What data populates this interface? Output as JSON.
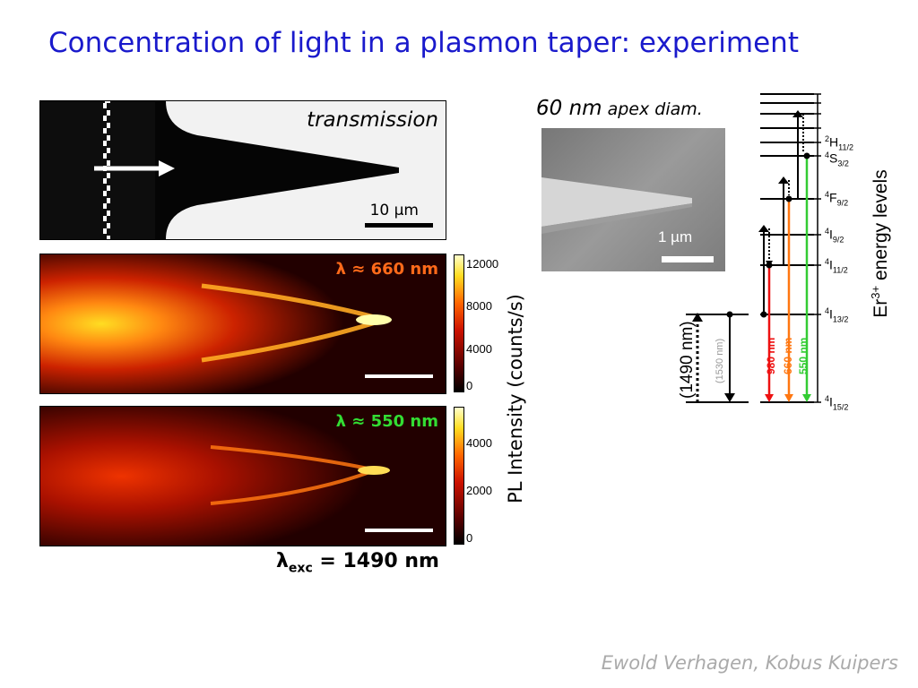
{
  "title": "Concentration of light in a plasmon taper: experiment",
  "transmission_panel": {
    "label": "transmission",
    "scale": "10 µm"
  },
  "pl_panel_660": {
    "label": "λ ≈ 660 nm",
    "colorbar_ticks": [
      "12000",
      "8000",
      "4000",
      "0"
    ]
  },
  "pl_panel_550": {
    "label": "λ ≈ 550 nm",
    "colorbar_ticks": [
      "4000",
      "2000",
      "0"
    ]
  },
  "pl_axis_label": "PL Intensity (counts/s)",
  "excitation": {
    "symbol": "λ",
    "sub": "exc",
    "value": " = 1490 nm"
  },
  "sem": {
    "apex": "60 nm",
    "apex_suffix": " apex diam.",
    "scale": "1 µm"
  },
  "energy_diagram": {
    "title": "Er",
    "title_sup": "3+",
    "title_rest": " energy levels",
    "levels": [
      {
        "pre": "2",
        "main": "H",
        "sub": "11/2"
      },
      {
        "pre": "4",
        "main": "S",
        "sub": "3/2"
      },
      {
        "pre": "4",
        "main": "F",
        "sub": "9/2"
      },
      {
        "pre": "4",
        "main": "I",
        "sub": "9/2"
      },
      {
        "pre": "4",
        "main": "I",
        "sub": "11/2"
      },
      {
        "pre": "4",
        "main": "I",
        "sub": "13/2"
      },
      {
        "pre": "4",
        "main": "I",
        "sub": "15/2"
      }
    ],
    "transitions": {
      "pump": "(1490 nm)",
      "emission_1530": "(1530 nm)",
      "emission_980": "980 nm",
      "emission_660": "660 nm",
      "emission_550": "550 nm"
    },
    "colors": {
      "red": "#ee1111",
      "orange": "#ff7711",
      "green": "#33cc33"
    }
  },
  "authors": "Ewold Verhagen, Kobus Kuipers"
}
